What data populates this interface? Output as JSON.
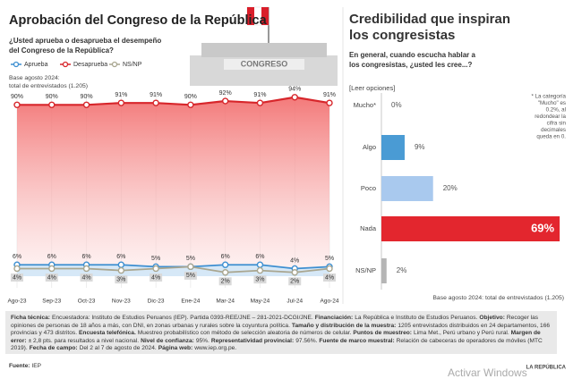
{
  "chart_data": [
    {
      "type": "line",
      "title": "Aprobación del Congreso de la República",
      "subtitle": [
        "¿Usted aprueba o desaprueba el desempeño",
        "del Congreso de la República?"
      ],
      "annotation": [
        "Base agosto 2024:",
        "total de entrevistados (1.205)"
      ],
      "categories": [
        "Ago-23",
        "Sep-23",
        "Oct-23",
        "Nov-23",
        "Dic-23",
        "Ene-24",
        "Mar-24",
        "May-24",
        "Jul-24",
        "Ago-24"
      ],
      "ylim": [
        0,
        100
      ],
      "series": [
        {
          "name": "Aprueba",
          "color": "#3d8fd1",
          "values": [
            6,
            6,
            6,
            6,
            5,
            5,
            6,
            6,
            4,
            5
          ],
          "value_labels": [
            "6%",
            "6%",
            "6%",
            "6%",
            "5%",
            "5%",
            "6%",
            "6%",
            "4%",
            "5%"
          ]
        },
        {
          "name": "Desaprueba",
          "color": "#d7262b",
          "values": [
            90,
            90,
            90,
            91,
            91,
            90,
            92,
            91,
            94,
            91
          ],
          "value_labels": [
            "90%",
            "90%",
            "90%",
            "91%",
            "91%",
            "90%",
            "92%",
            "91%",
            "94%",
            "91%"
          ]
        },
        {
          "name": "NS/NP",
          "color": "#a9a690",
          "values": [
            4,
            4,
            4,
            3,
            4,
            5,
            2,
            3,
            2,
            4
          ],
          "value_labels": [
            "4%",
            "4%",
            "4%",
            "3%",
            "4%",
            "5%",
            "2%",
            "3%",
            "2%",
            "4%"
          ]
        }
      ]
    },
    {
      "type": "bar",
      "orientation": "horizontal",
      "title": [
        "Credibilidad que inspiran",
        "los congresistas"
      ],
      "subtitle": [
        "En general, cuando escucha hablar a",
        "los congresistas, ¿usted les cree...?"
      ],
      "instruction": "[Leer opciones]",
      "categories": [
        "Mucho*",
        "Algo",
        "Poco",
        "Nada",
        "NS/NP"
      ],
      "values": [
        0,
        9,
        20,
        69,
        2
      ],
      "value_labels": [
        "0%",
        "9%",
        "20%",
        "69%",
        "2%"
      ],
      "colors": [
        "#4a9bd4",
        "#4a9bd4",
        "#a9c9ee",
        "#e3262e",
        "#b5b5b5"
      ],
      "xlim": [
        0,
        70
      ],
      "note": [
        "* La categoría",
        "\"Mucho\" es",
        "0.2%, al",
        "redondear la",
        "cifra sin",
        "decimales",
        "queda en 0."
      ],
      "base": "Base agosto 2024: total de entrevistados (1.205)"
    }
  ],
  "technical_sheet": [
    {
      "label": "Ficha técnica:",
      "text": "Encuestadora: Instituto de Estudios Peruanos (IEP). Partida 0393-REE/JNE – 281-2021-DCGI/JNE."
    },
    {
      "label": "Financiación:",
      "text": "La República e Instituto de Estudios Peruanos."
    },
    {
      "label": "Objetivo:",
      "text": "Recoger las opiniones de personas de 18 años a más, con DNI, en zonas urbanas y rurales sobre la coyuntura política."
    },
    {
      "label": "Tamaño y distribución de la muestra:",
      "text": "1205 entrevistados distribuidos en 24 departamentos, 166 provincias y 473 distritos."
    },
    {
      "label": "Encuesta telefónica.",
      "text": "Muestreo probabilístico con método de selección aleatoria de números de celular."
    },
    {
      "label": "Puntos de muestreo:",
      "text": "Lima Met., Perú urbano y Perú rural."
    },
    {
      "label": "Margen de error:",
      "text": "± 2,8 pts. para resultados a nivel nacional."
    },
    {
      "label": "Nivel de confianza:",
      "text": "95%."
    },
    {
      "label": "Representatividad provincial:",
      "text": "97.56%."
    },
    {
      "label": "Fuente de marco muestral:",
      "text": "Relación de cabeceras de operadores de móviles (MTC 2019)."
    },
    {
      "label": "Fecha de campo:",
      "text": "Del 2 al 7 de agosto de 2024."
    },
    {
      "label": "Página web:",
      "text": "www.iep.org.pe."
    }
  ],
  "source": {
    "label": "Fuente:",
    "text": "IEP"
  },
  "brand": "LA REPÚBLICA",
  "watermark": "Activar Windows"
}
